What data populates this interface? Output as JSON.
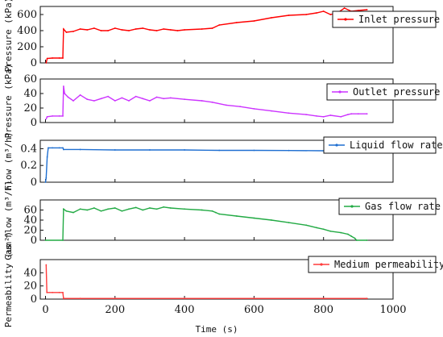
{
  "chart_data": [
    {
      "type": "line",
      "ylabel": "Pressure (kPa)",
      "ylim": [
        0,
        700
      ],
      "yticks": [
        0,
        200,
        400,
        600
      ],
      "series": [
        {
          "name": "Inlet pressure",
          "color": "#ff0000",
          "points": [
            [
              2,
              0
            ],
            [
              5,
              55
            ],
            [
              20,
              60
            ],
            [
              40,
              60
            ],
            [
              50,
              60
            ],
            [
              52,
              420
            ],
            [
              60,
              380
            ],
            [
              80,
              390
            ],
            [
              100,
              420
            ],
            [
              120,
              410
            ],
            [
              140,
              430
            ],
            [
              160,
              400
            ],
            [
              180,
              400
            ],
            [
              200,
              430
            ],
            [
              220,
              410
            ],
            [
              240,
              400
            ],
            [
              260,
              420
            ],
            [
              280,
              430
            ],
            [
              300,
              410
            ],
            [
              320,
              400
            ],
            [
              340,
              420
            ],
            [
              360,
              410
            ],
            [
              380,
              400
            ],
            [
              400,
              410
            ],
            [
              450,
              420
            ],
            [
              480,
              430
            ],
            [
              500,
              470
            ],
            [
              550,
              500
            ],
            [
              600,
              520
            ],
            [
              650,
              560
            ],
            [
              700,
              590
            ],
            [
              750,
              600
            ],
            [
              780,
              620
            ],
            [
              800,
              640
            ],
            [
              820,
              600
            ],
            [
              840,
              620
            ],
            [
              860,
              680
            ],
            [
              880,
              640
            ],
            [
              900,
              650
            ],
            [
              925,
              660
            ]
          ]
        }
      ]
    },
    {
      "type": "line",
      "ylabel": "Pressure (kPa)",
      "ylim": [
        0,
        60
      ],
      "yticks": [
        0,
        20,
        40,
        60
      ],
      "series": [
        {
          "name": "Outlet pressure",
          "color": "#cc33ff",
          "points": [
            [
              2,
              5
            ],
            [
              5,
              8
            ],
            [
              20,
              9
            ],
            [
              40,
              9
            ],
            [
              50,
              9
            ],
            [
              52,
              50
            ],
            [
              55,
              40
            ],
            [
              65,
              35
            ],
            [
              80,
              30
            ],
            [
              100,
              38
            ],
            [
              120,
              32
            ],
            [
              140,
              30
            ],
            [
              160,
              33
            ],
            [
              180,
              36
            ],
            [
              200,
              30
            ],
            [
              220,
              34
            ],
            [
              240,
              30
            ],
            [
              260,
              36
            ],
            [
              280,
              33
            ],
            [
              300,
              30
            ],
            [
              320,
              35
            ],
            [
              340,
              33
            ],
            [
              360,
              34
            ],
            [
              400,
              32
            ],
            [
              450,
              30
            ],
            [
              480,
              28
            ],
            [
              520,
              24
            ],
            [
              560,
              22
            ],
            [
              600,
              19
            ],
            [
              650,
              16
            ],
            [
              700,
              13
            ],
            [
              750,
              11
            ],
            [
              780,
              9
            ],
            [
              800,
              8
            ],
            [
              820,
              10
            ],
            [
              850,
              8
            ],
            [
              870,
              11
            ],
            [
              880,
              12
            ],
            [
              900,
              12
            ],
            [
              925,
              12
            ]
          ]
        }
      ]
    },
    {
      "type": "line",
      "ylabel": "Flow (m³/h)",
      "ylim": [
        0,
        0.5
      ],
      "yticks": [
        0.0,
        0.2,
        0.4
      ],
      "series": [
        {
          "name": "Liquid flow rate",
          "color": "#1f6fd1",
          "points": [
            [
              0,
              0
            ],
            [
              2,
              0.05
            ],
            [
              5,
              0.3
            ],
            [
              8,
              0.41
            ],
            [
              20,
              0.41
            ],
            [
              40,
              0.41
            ],
            [
              50,
              0.41
            ],
            [
              52,
              0.39
            ],
            [
              100,
              0.39
            ],
            [
              200,
              0.385
            ],
            [
              300,
              0.385
            ],
            [
              400,
              0.385
            ],
            [
              500,
              0.38
            ],
            [
              600,
              0.38
            ],
            [
              700,
              0.378
            ],
            [
              800,
              0.375
            ],
            [
              900,
              0.372
            ],
            [
              925,
              0.37
            ]
          ]
        }
      ]
    },
    {
      "type": "line",
      "ylabel": "Gas flow (m³/h)",
      "ylim": [
        0,
        80
      ],
      "yticks": [
        0,
        20,
        40,
        60
      ],
      "series": [
        {
          "name": "Gas flow rate",
          "color": "#22aa44",
          "points": [
            [
              0,
              0
            ],
            [
              50,
              0
            ],
            [
              52,
              62
            ],
            [
              60,
              58
            ],
            [
              80,
              55
            ],
            [
              100,
              62
            ],
            [
              120,
              60
            ],
            [
              140,
              64
            ],
            [
              160,
              58
            ],
            [
              180,
              62
            ],
            [
              200,
              64
            ],
            [
              220,
              58
            ],
            [
              240,
              62
            ],
            [
              260,
              65
            ],
            [
              280,
              60
            ],
            [
              300,
              64
            ],
            [
              320,
              62
            ],
            [
              340,
              66
            ],
            [
              360,
              64
            ],
            [
              400,
              62
            ],
            [
              450,
              60
            ],
            [
              480,
              58
            ],
            [
              490,
              55
            ],
            [
              500,
              52
            ],
            [
              550,
              48
            ],
            [
              600,
              44
            ],
            [
              650,
              40
            ],
            [
              700,
              35
            ],
            [
              750,
              30
            ],
            [
              780,
              25
            ],
            [
              800,
              22
            ],
            [
              820,
              18
            ],
            [
              850,
              15
            ],
            [
              870,
              12
            ],
            [
              880,
              8
            ],
            [
              890,
              4
            ],
            [
              895,
              0
            ],
            [
              925,
              0
            ]
          ]
        }
      ]
    },
    {
      "type": "line",
      "ylabel": "Permeability (um²)",
      "ylim": [
        0,
        60
      ],
      "yticks": [
        0,
        20,
        40
      ],
      "xlabel": "Time (s)",
      "xlim": [
        -15,
        1000
      ],
      "xticks": [
        0,
        200,
        400,
        600,
        800,
        1000
      ],
      "series": [
        {
          "name": "Medium permeability",
          "color": "#ff3b3b",
          "points": [
            [
              2,
              52
            ],
            [
              4,
              10
            ],
            [
              20,
              10
            ],
            [
              40,
              10
            ],
            [
              50,
              10
            ],
            [
              52,
              1
            ],
            [
              100,
              1
            ],
            [
              200,
              1
            ],
            [
              400,
              1
            ],
            [
              600,
              1
            ],
            [
              800,
              1
            ],
            [
              925,
              1
            ]
          ]
        }
      ]
    }
  ]
}
